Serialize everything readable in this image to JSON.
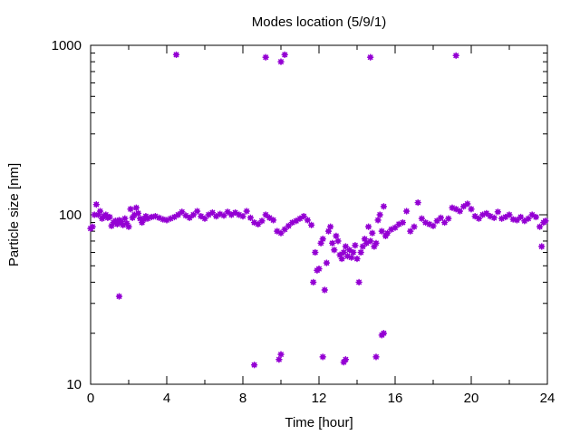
{
  "chart_data": {
    "type": "scatter",
    "title": "Modes location (5/9/1)",
    "xlabel": "Time [hour]",
    "ylabel": "Particle size [nm]",
    "xlim": [
      0,
      24
    ],
    "ylim": [
      10,
      1000
    ],
    "yscale": "log",
    "grid": false,
    "legend": "none",
    "marker_color": "#9400d3",
    "x_ticks": [
      0,
      4,
      8,
      12,
      16,
      20,
      24
    ],
    "x_tick_labels": [
      "0",
      "4",
      "8",
      "12",
      "16",
      "20",
      "24"
    ],
    "x_minor_ticks": [
      2,
      6,
      10,
      14,
      18,
      22
    ],
    "y_ticks": [
      10,
      100,
      1000
    ],
    "y_tick_labels": [
      "10",
      "100",
      "1000"
    ],
    "series": [
      {
        "points": [
          [
            0.0,
            83
          ],
          [
            0.1,
            85
          ],
          [
            0.2,
            100
          ],
          [
            0.3,
            115
          ],
          [
            0.4,
            100
          ],
          [
            0.5,
            105
          ],
          [
            0.6,
            95
          ],
          [
            0.7,
            98
          ],
          [
            0.8,
            100
          ],
          [
            0.9,
            96
          ],
          [
            1.0,
            97
          ],
          [
            1.1,
            86
          ],
          [
            1.2,
            90
          ],
          [
            1.3,
            92
          ],
          [
            1.4,
            88
          ],
          [
            1.5,
            93
          ],
          [
            1.6,
            91
          ],
          [
            1.7,
            87
          ],
          [
            1.8,
            95
          ],
          [
            1.9,
            89
          ],
          [
            2.0,
            85
          ],
          [
            2.1,
            108
          ],
          [
            2.2,
            96
          ],
          [
            2.3,
            100
          ],
          [
            2.4,
            110
          ],
          [
            2.5,
            102
          ],
          [
            2.6,
            95
          ],
          [
            2.7,
            90
          ],
          [
            2.8,
            94
          ],
          [
            2.9,
            98
          ],
          [
            3.0,
            95
          ],
          [
            3.2,
            97
          ],
          [
            3.4,
            98
          ],
          [
            3.6,
            96
          ],
          [
            3.8,
            94
          ],
          [
            4.0,
            93
          ],
          [
            4.2,
            95
          ],
          [
            4.4,
            97
          ],
          [
            4.6,
            100
          ],
          [
            4.8,
            104
          ],
          [
            5.0,
            99
          ],
          [
            5.2,
            96
          ],
          [
            5.4,
            100
          ],
          [
            5.6,
            105
          ],
          [
            5.8,
            98
          ],
          [
            6.0,
            95
          ],
          [
            6.2,
            100
          ],
          [
            6.4,
            103
          ],
          [
            6.6,
            98
          ],
          [
            6.8,
            101
          ],
          [
            7.0,
            99
          ],
          [
            7.2,
            104
          ],
          [
            7.4,
            100
          ],
          [
            7.6,
            103
          ],
          [
            7.8,
            100
          ],
          [
            8.0,
            98
          ],
          [
            8.2,
            105
          ],
          [
            8.4,
            96
          ],
          [
            8.6,
            90
          ],
          [
            8.8,
            88
          ],
          [
            9.0,
            92
          ],
          [
            9.2,
            100
          ],
          [
            9.4,
            96
          ],
          [
            9.6,
            93
          ],
          [
            9.8,
            80
          ],
          [
            10.0,
            78
          ],
          [
            10.2,
            82
          ],
          [
            10.4,
            86
          ],
          [
            10.6,
            90
          ],
          [
            10.8,
            92
          ],
          [
            11.0,
            95
          ],
          [
            11.2,
            98
          ],
          [
            11.4,
            93
          ],
          [
            11.6,
            87
          ],
          [
            11.7,
            40
          ],
          [
            11.8,
            60
          ],
          [
            11.9,
            47
          ],
          [
            12.0,
            48
          ],
          [
            12.1,
            68
          ],
          [
            12.2,
            72
          ],
          [
            12.3,
            36
          ],
          [
            12.4,
            52
          ],
          [
            12.5,
            80
          ],
          [
            12.6,
            85
          ],
          [
            12.7,
            68
          ],
          [
            12.8,
            62
          ],
          [
            12.9,
            75
          ],
          [
            13.0,
            70
          ],
          [
            13.1,
            58
          ],
          [
            13.2,
            55
          ],
          [
            13.3,
            60
          ],
          [
            13.4,
            65
          ],
          [
            13.5,
            57
          ],
          [
            13.6,
            62
          ],
          [
            13.7,
            56
          ],
          [
            13.8,
            60
          ],
          [
            13.9,
            66
          ],
          [
            14.0,
            55
          ],
          [
            14.1,
            40
          ],
          [
            14.2,
            60
          ],
          [
            14.3,
            65
          ],
          [
            14.4,
            72
          ],
          [
            14.5,
            68
          ],
          [
            14.6,
            85
          ],
          [
            14.7,
            70
          ],
          [
            14.8,
            78
          ],
          [
            14.9,
            65
          ],
          [
            15.0,
            68
          ],
          [
            15.1,
            93
          ],
          [
            15.2,
            100
          ],
          [
            15.3,
            80
          ],
          [
            15.4,
            112
          ],
          [
            15.5,
            75
          ],
          [
            15.6,
            78
          ],
          [
            15.8,
            82
          ],
          [
            16.0,
            84
          ],
          [
            16.2,
            88
          ],
          [
            16.4,
            90
          ],
          [
            16.6,
            105
          ],
          [
            16.8,
            80
          ],
          [
            17.0,
            85
          ],
          [
            17.2,
            118
          ],
          [
            17.4,
            95
          ],
          [
            17.6,
            90
          ],
          [
            17.8,
            88
          ],
          [
            18.0,
            86
          ],
          [
            18.2,
            92
          ],
          [
            18.4,
            96
          ],
          [
            18.6,
            90
          ],
          [
            18.8,
            95
          ],
          [
            19.0,
            110
          ],
          [
            19.2,
            108
          ],
          [
            19.4,
            105
          ],
          [
            19.6,
            112
          ],
          [
            19.8,
            116
          ],
          [
            20.0,
            108
          ],
          [
            20.2,
            98
          ],
          [
            20.4,
            95
          ],
          [
            20.6,
            100
          ],
          [
            20.8,
            102
          ],
          [
            21.0,
            98
          ],
          [
            21.2,
            96
          ],
          [
            21.4,
            104
          ],
          [
            21.6,
            95
          ],
          [
            21.8,
            97
          ],
          [
            22.0,
            100
          ],
          [
            22.2,
            94
          ],
          [
            22.4,
            93
          ],
          [
            22.6,
            97
          ],
          [
            22.8,
            92
          ],
          [
            23.0,
            95
          ],
          [
            23.2,
            100
          ],
          [
            23.4,
            97
          ],
          [
            23.6,
            85
          ],
          [
            23.7,
            65
          ],
          [
            23.8,
            90
          ],
          [
            23.9,
            92
          ],
          [
            4.5,
            880
          ],
          [
            9.2,
            850
          ],
          [
            10.0,
            800
          ],
          [
            10.2,
            880
          ],
          [
            14.7,
            850
          ],
          [
            19.2,
            870
          ],
          [
            1.5,
            33
          ],
          [
            8.6,
            13
          ],
          [
            9.9,
            14
          ],
          [
            10.0,
            15
          ],
          [
            12.2,
            14.5
          ],
          [
            13.3,
            13.5
          ],
          [
            13.4,
            14
          ],
          [
            15.0,
            14.5
          ],
          [
            15.3,
            19.5
          ],
          [
            15.4,
            20
          ]
        ]
      }
    ]
  }
}
